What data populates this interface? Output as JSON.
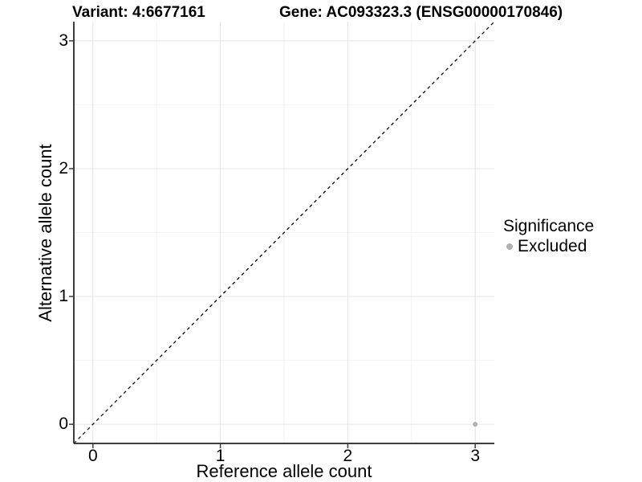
{
  "chart_data": {
    "type": "scatter",
    "title_left": "Variant: 4:6677161",
    "title_right": "Gene: AC093323.3 (ENSG00000170846)",
    "xlabel": "Reference allele count",
    "ylabel": "Alternative allele count",
    "x_ticks": [
      0,
      1,
      2,
      3
    ],
    "y_ticks": [
      0,
      1,
      2,
      3
    ],
    "xlim": [
      -0.15,
      3.15
    ],
    "ylim": [
      -0.15,
      3.15
    ],
    "grid": "major and minor gridlines, white background",
    "identity_line": {
      "style": "dashed",
      "from": "bottom-left",
      "to": "top-right"
    },
    "series": [
      {
        "name": "Excluded",
        "color": "#b0b0b0",
        "points": [
          {
            "x": 3,
            "y": 0
          }
        ]
      }
    ],
    "legend": {
      "title": "Significance",
      "position": "right",
      "entries": [
        {
          "label": "Excluded",
          "color": "#b0b0b0"
        }
      ]
    }
  },
  "style": {
    "background": "#ffffff",
    "text_color": "#000000",
    "grid_major": "#e4e4e4",
    "grid_minor": "#f2f2f2",
    "axis_color": "#3d3d3d",
    "dashed_line_color": "#000000",
    "point_color": "#b0b0b0"
  }
}
